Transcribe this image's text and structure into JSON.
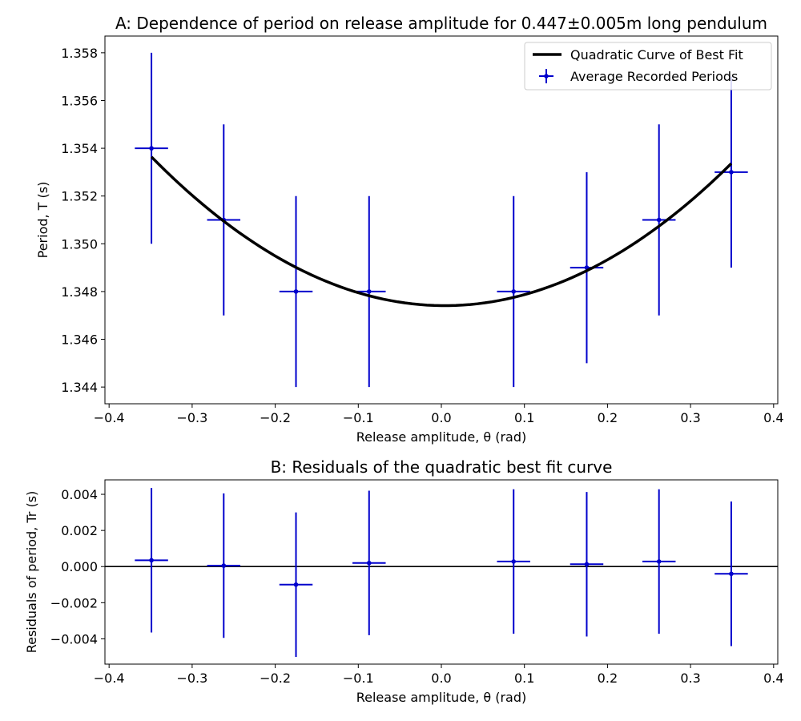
{
  "chart_data": [
    {
      "id": "panel-a",
      "type": "scatter",
      "title": "A: Dependence of period on release amplitude for 0.447±0.005m long pendulum",
      "xlabel": "Release amplitude, θ (rad)",
      "ylabel": "Period, T (s)",
      "xlim": [
        -0.405,
        0.405
      ],
      "ylim": [
        1.3433,
        1.3587
      ],
      "xticks": [
        -0.4,
        -0.3,
        -0.2,
        -0.1,
        0.0,
        0.1,
        0.2,
        0.3,
        0.4
      ],
      "xtick_labels": [
        "−0.4",
        "−0.3",
        "−0.2",
        "−0.1",
        "0.0",
        "0.1",
        "0.2",
        "0.3",
        "0.4"
      ],
      "yticks": [
        1.344,
        1.346,
        1.348,
        1.35,
        1.352,
        1.354,
        1.356,
        1.358
      ],
      "ytick_labels": [
        "1.344",
        "1.346",
        "1.348",
        "1.350",
        "1.352",
        "1.354",
        "1.356",
        "1.358"
      ],
      "grid": false,
      "legend": {
        "placement": "top-right",
        "entries": [
          "Quadratic Curve of Best Fit",
          "Average Recorded Periods"
        ]
      },
      "series": [
        {
          "name": "Average Recorded Periods",
          "kind": "errorbar",
          "color": "#0000cc",
          "x": [
            -0.349,
            -0.262,
            -0.175,
            -0.087,
            0.087,
            0.175,
            0.262,
            0.349
          ],
          "y": [
            1.354,
            1.351,
            1.348,
            1.348,
            1.348,
            1.349,
            1.351,
            1.353
          ],
          "yerr": [
            0.004,
            0.004,
            0.004,
            0.004,
            0.004,
            0.004,
            0.004,
            0.004
          ],
          "xerr": [
            0.02,
            0.02,
            0.02,
            0.02,
            0.02,
            0.02,
            0.02,
            0.02
          ]
        },
        {
          "name": "Quadratic Curve of Best Fit",
          "kind": "line",
          "color": "#000000",
          "coefficients": {
            "a": 0.05,
            "b": -0.0004,
            "c": 1.34741
          },
          "x_range": [
            -0.349,
            0.349
          ]
        }
      ]
    },
    {
      "id": "panel-b",
      "type": "scatter",
      "title": "B: Residuals of the quadratic best fit curve",
      "xlabel": "Release amplitude, θ (rad)",
      "ylabel": "Residuals of period, Tr (s)",
      "xlim": [
        -0.405,
        0.405
      ],
      "ylim": [
        -0.0054,
        0.0048
      ],
      "xticks": [
        -0.4,
        -0.3,
        -0.2,
        -0.1,
        0.0,
        0.1,
        0.2,
        0.3,
        0.4
      ],
      "xtick_labels": [
        "−0.4",
        "−0.3",
        "−0.2",
        "−0.1",
        "0.0",
        "0.1",
        "0.2",
        "0.3",
        "0.4"
      ],
      "yticks": [
        -0.004,
        -0.002,
        0.0,
        0.002,
        0.004
      ],
      "ytick_labels": [
        "−0.004",
        "−0.002",
        "0.000",
        "0.002",
        "0.004"
      ],
      "grid": false,
      "zero_line": true,
      "series": [
        {
          "kind": "errorbar",
          "color": "#0000cc",
          "x": [
            -0.349,
            -0.262,
            -0.175,
            -0.087,
            0.087,
            0.175,
            0.262,
            0.349
          ],
          "y": [
            0.00035,
            5e-05,
            -0.001,
            0.0002,
            0.00028,
            0.00013,
            0.00028,
            -0.0004
          ],
          "yerr": [
            0.004,
            0.004,
            0.004,
            0.004,
            0.004,
            0.004,
            0.004,
            0.004
          ],
          "xerr": [
            0.02,
            0.02,
            0.02,
            0.02,
            0.02,
            0.02,
            0.02,
            0.02
          ]
        }
      ]
    }
  ]
}
